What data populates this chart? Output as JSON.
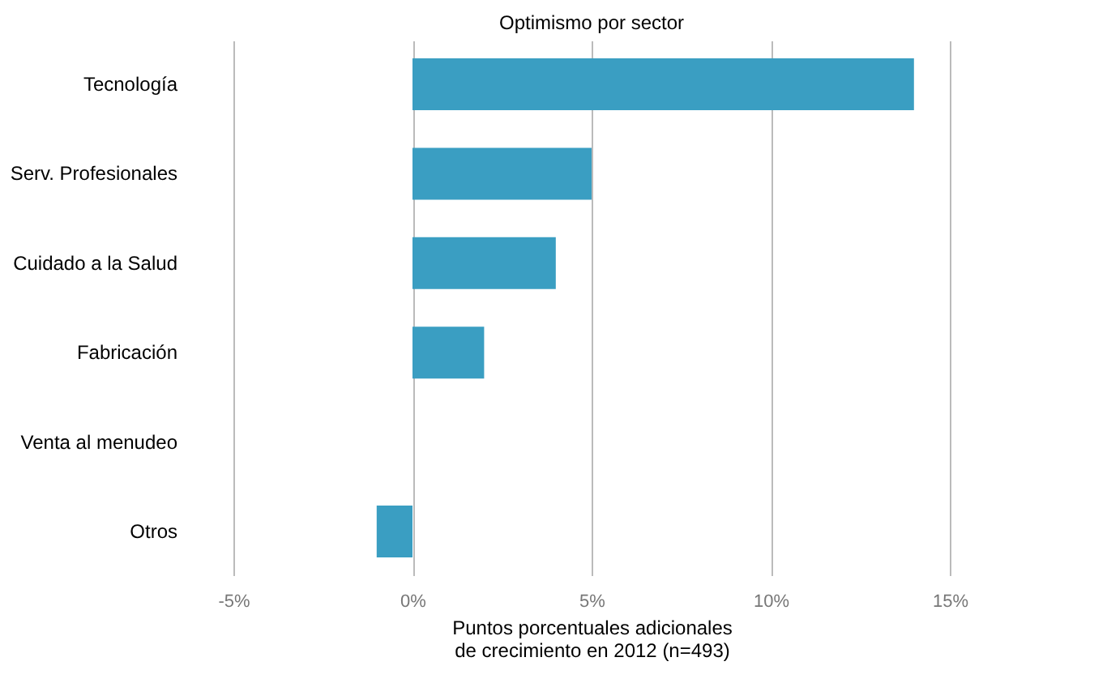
{
  "chart_data": {
    "type": "bar",
    "orientation": "horizontal",
    "title": "Optimismo por sector",
    "xlabel": "Puntos porcentuales adicionales de crecimiento en 2012 (n=493)",
    "categories": [
      "Tecnología",
      "Serv. Profesionales",
      "Cuidado a la Salud",
      "Fabricación",
      "Venta al menudeo",
      "Otros"
    ],
    "values": [
      14,
      5,
      4,
      2,
      0,
      -1
    ],
    "color": "#3a9ec2",
    "xlim": [
      -5,
      15
    ],
    "xticks": [
      {
        "value": -5,
        "label": "-5%"
      },
      {
        "value": 0,
        "label": "0%"
      },
      {
        "value": 5,
        "label": "5%"
      },
      {
        "value": 10,
        "label": "10%"
      },
      {
        "value": 15,
        "label": "15%"
      }
    ],
    "grid": "x"
  }
}
